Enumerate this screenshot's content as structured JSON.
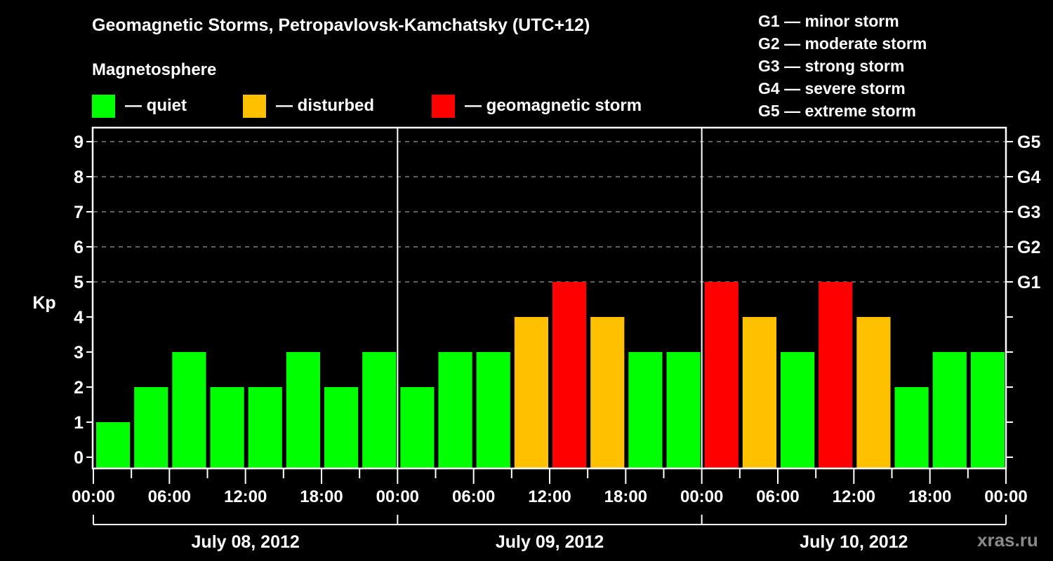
{
  "header": {
    "title": "Geomagnetic Storms, Petropavlovsk-Kamchatsky (UTC+12)",
    "subtitle": "Magnetosphere"
  },
  "legend": {
    "items": [
      {
        "label": "— quiet",
        "color": "#00ff00"
      },
      {
        "label": "— disturbed",
        "color": "#ffc000"
      },
      {
        "label": "— geomagnetic storm",
        "color": "#ff0000"
      }
    ]
  },
  "storm_scale": [
    "G1 — minor storm",
    "G2 — moderate storm",
    "G3 — strong storm",
    "G4 — severe storm",
    "G5 — extreme storm"
  ],
  "watermark": "xras.ru",
  "colors": {
    "quiet": "#00ff00",
    "disturbed": "#ffc000",
    "storm": "#ff0000",
    "background": "#000000",
    "axis": "#ffffff",
    "grid": "#808080"
  },
  "chart_data": {
    "type": "bar",
    "title": "Geomagnetic Storms, Petropavlovsk-Kamchatsky (UTC+12)",
    "xlabel": "",
    "ylabel": "Kp",
    "ylim": [
      0,
      9
    ],
    "yticks": [
      0,
      1,
      2,
      3,
      4,
      5,
      6,
      7,
      8,
      9
    ],
    "right_axis_labels": [
      {
        "kp": 5,
        "label": "G1"
      },
      {
        "kp": 6,
        "label": "G2"
      },
      {
        "kp": 7,
        "label": "G3"
      },
      {
        "kp": 8,
        "label": "G4"
      },
      {
        "kp": 9,
        "label": "G5"
      }
    ],
    "grid": "dashed horizontal at Kp 5-9",
    "x_tick_labels": [
      "00:00",
      "06:00",
      "12:00",
      "18:00",
      "00:00",
      "06:00",
      "12:00",
      "18:00",
      "00:00",
      "06:00",
      "12:00",
      "18:00",
      "00:00"
    ],
    "days": [
      "July 08, 2012",
      "July 09, 2012",
      "July 10, 2012"
    ],
    "interval_hours": 3,
    "series": [
      {
        "name": "Kp",
        "values": [
          1,
          2,
          3,
          2,
          2,
          3,
          2,
          3,
          2,
          3,
          3,
          4,
          5,
          4,
          3,
          3,
          5,
          4,
          3,
          5,
          4,
          2,
          3,
          3
        ],
        "levels": [
          "quiet",
          "quiet",
          "quiet",
          "quiet",
          "quiet",
          "quiet",
          "quiet",
          "quiet",
          "quiet",
          "quiet",
          "quiet",
          "disturbed",
          "storm",
          "disturbed",
          "quiet",
          "quiet",
          "storm",
          "disturbed",
          "quiet",
          "storm",
          "disturbed",
          "quiet",
          "quiet",
          "quiet"
        ]
      }
    ],
    "legend": [
      "quiet",
      "disturbed",
      "geomagnetic storm"
    ],
    "legend_position": "top"
  }
}
